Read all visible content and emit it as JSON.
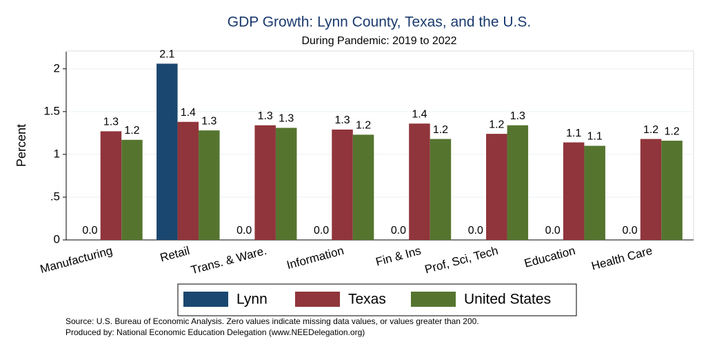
{
  "chart_data": {
    "type": "bar",
    "title": "GDP Growth: Lynn County, Texas, and the U.S.",
    "subtitle": "During Pandemic: 2019 to 2022",
    "y_label": "Percent",
    "categories": [
      "Manufacturing",
      "Retail",
      "Trans. & Ware.",
      "Information",
      "Fin & Ins",
      "Prof, Sci, Tech",
      "Education",
      "Health Care"
    ],
    "series": [
      {
        "name": "Lynn",
        "color": "#1a476f",
        "values": [
          0,
          2.06,
          0,
          0,
          0,
          0,
          0,
          0
        ],
        "value_labels": [
          "0.0",
          "2.1",
          "0.0",
          "0.0",
          "0.0",
          "0.0",
          "0.0",
          "0.0"
        ]
      },
      {
        "name": "Texas",
        "color": "#90353b",
        "values": [
          1.27,
          1.38,
          1.34,
          1.29,
          1.36,
          1.24,
          1.14,
          1.18
        ],
        "value_labels": [
          "1.3",
          "1.4",
          "1.3",
          "1.3",
          "1.4",
          "1.2",
          "1.1",
          "1.2"
        ]
      },
      {
        "name": "United States",
        "color": "#55752f",
        "values": [
          1.17,
          1.28,
          1.31,
          1.23,
          1.18,
          1.34,
          1.1,
          1.16
        ],
        "value_labels": [
          "1.2",
          "1.3",
          "1.3",
          "1.2",
          "1.2",
          "1.3",
          "1.1",
          "1.2"
        ]
      }
    ],
    "ylim": [
      0,
      2.2
    ],
    "yticks": [
      0,
      {
        "value": 0.5,
        "label": ".5"
      },
      1,
      1.5,
      2
    ],
    "grid": true,
    "legend": "bottom",
    "notes": [
      "Source: U.S. Bureau of Economic Analysis. Zero values indicate missing data values, or values greater than 200.",
      "Produced by: National Economic Education Delegation (www.NEEDelegation.org)"
    ]
  }
}
